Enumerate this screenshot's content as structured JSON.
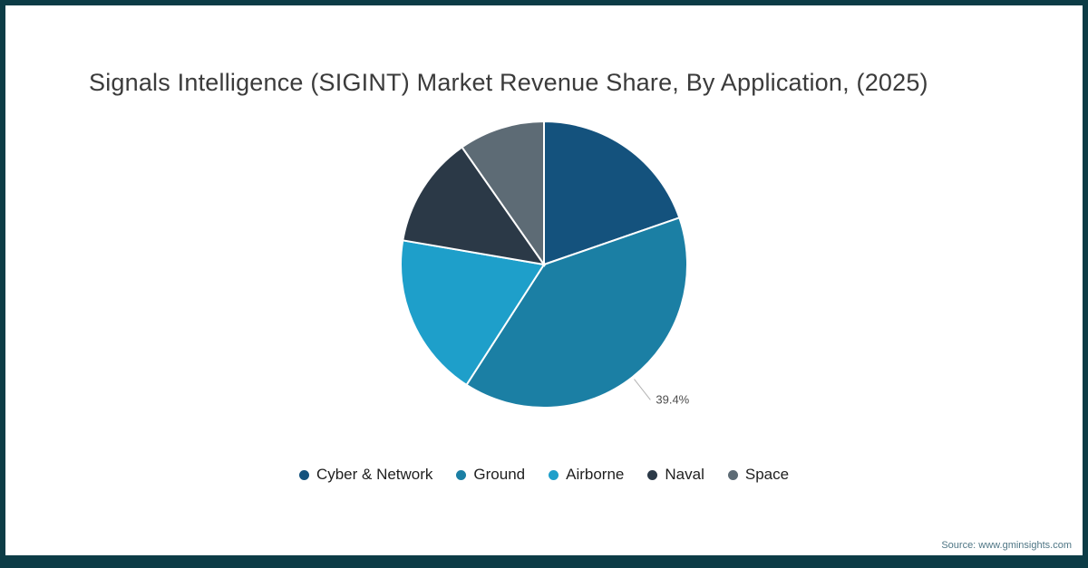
{
  "frame": {
    "border_color": "#0c3c46",
    "background": "#ffffff"
  },
  "title": "Signals Intelligence (SIGINT) Market Revenue Share, By Application, (2025)",
  "source_text": "Source: www.gminsights.com",
  "chart_data": {
    "type": "pie",
    "title": "Signals Intelligence (SIGINT) Market Revenue Share, By Application, (2025)",
    "unit": "% revenue share",
    "start_angle_deg": 0,
    "direction": "clockwise",
    "legend_position": "bottom",
    "slices": [
      {
        "name": "Cyber & Network",
        "value": 19.7,
        "color": "#14527d"
      },
      {
        "name": "Ground",
        "value": 39.4,
        "color": "#1b7fa4",
        "label": "39.4%"
      },
      {
        "name": "Airborne",
        "value": 18.6,
        "color": "#1e9fca"
      },
      {
        "name": "Naval",
        "value": 12.6,
        "color": "#2b3947"
      },
      {
        "name": "Space",
        "value": 9.7,
        "color": "#5d6b75"
      }
    ],
    "annotations": [
      "39.4%"
    ]
  }
}
